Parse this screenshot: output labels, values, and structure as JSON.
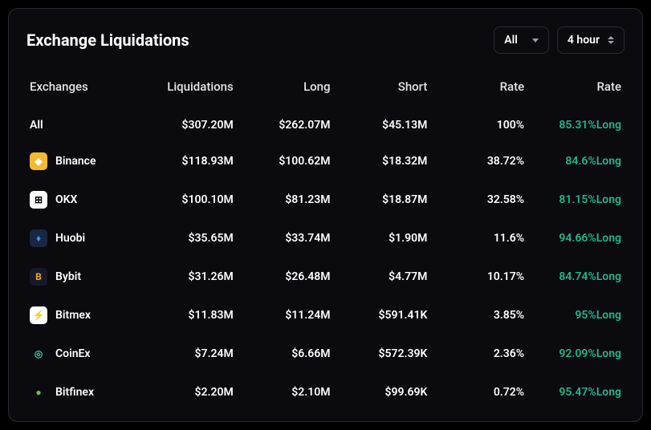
{
  "title": "Exchange Liquidations",
  "filters": {
    "scope": {
      "label": "All"
    },
    "timeframe": {
      "label": "4 hour"
    }
  },
  "columns": {
    "exchanges": "Exchanges",
    "liquidations": "Liquidations",
    "long": "Long",
    "short": "Short",
    "rate1": "Rate",
    "rate2": "Rate"
  },
  "colors": {
    "background": "#000000",
    "card_bg": "#0a0a0f",
    "border": "#2a2a35",
    "text": "#ffffff",
    "positive": "#1fb88a"
  },
  "rows": [
    {
      "name": "All",
      "logo": null,
      "liquidations": "$307.20M",
      "long": "$262.07M",
      "short": "$45.13M",
      "rate1": "100%",
      "rate2_pct": "85.31%",
      "rate2_dir": "Long"
    },
    {
      "name": "Binance",
      "logo": {
        "bg": "#f3ba2f",
        "fg": "#ffffff",
        "glyph": "◆"
      },
      "liquidations": "$118.93M",
      "long": "$100.62M",
      "short": "$18.32M",
      "rate1": "38.72%",
      "rate2_pct": "84.6%",
      "rate2_dir": "Long"
    },
    {
      "name": "OKX",
      "logo": {
        "bg": "#ffffff",
        "fg": "#000000",
        "glyph": "⊞"
      },
      "liquidations": "$100.10M",
      "long": "$81.23M",
      "short": "$18.87M",
      "rate1": "32.58%",
      "rate2_pct": "81.15%",
      "rate2_dir": "Long"
    },
    {
      "name": "Huobi",
      "logo": {
        "bg": "#1a2740",
        "fg": "#3e8ef7",
        "glyph": "♦"
      },
      "liquidations": "$35.65M",
      "long": "$33.74M",
      "short": "$1.90M",
      "rate1": "11.6%",
      "rate2_pct": "94.66%",
      "rate2_dir": "Long"
    },
    {
      "name": "Bybit",
      "logo": {
        "bg": "#15192a",
        "fg": "#f7a600",
        "glyph": "B"
      },
      "liquidations": "$31.26M",
      "long": "$26.48M",
      "short": "$4.77M",
      "rate1": "10.17%",
      "rate2_pct": "84.74%",
      "rate2_dir": "Long"
    },
    {
      "name": "Bitmex",
      "logo": {
        "bg": "#ffffff",
        "fg": "#ff0033",
        "glyph": "⚡"
      },
      "liquidations": "$11.83M",
      "long": "$11.24M",
      "short": "$591.41K",
      "rate1": "3.85%",
      "rate2_pct": "95%",
      "rate2_dir": "Long"
    },
    {
      "name": "CoinEx",
      "logo": {
        "bg": "#0a0a0f",
        "fg": "#22d3a7",
        "glyph": "◎"
      },
      "liquidations": "$7.24M",
      "long": "$6.66M",
      "short": "$572.39K",
      "rate1": "2.36%",
      "rate2_pct": "92.09%",
      "rate2_dir": "Long"
    },
    {
      "name": "Bitfinex",
      "logo": {
        "bg": "#0a0a0f",
        "fg": "#6fbf4a",
        "glyph": "●"
      },
      "liquidations": "$2.20M",
      "long": "$2.10M",
      "short": "$99.69K",
      "rate1": "0.72%",
      "rate2_pct": "95.47%",
      "rate2_dir": "Long"
    }
  ]
}
